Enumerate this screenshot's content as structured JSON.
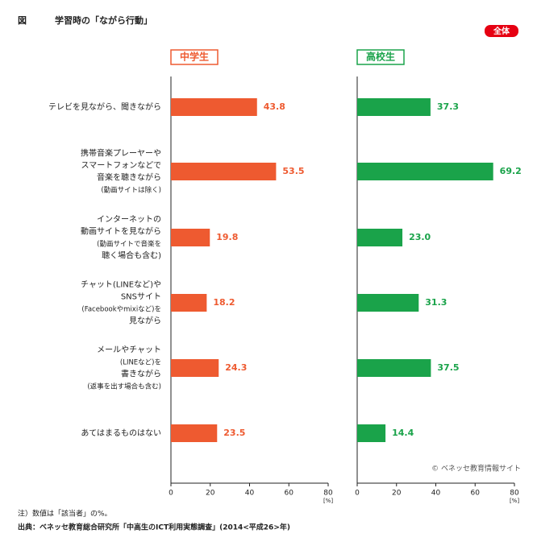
{
  "chart_data": {
    "type": "bar",
    "orientation": "horizontal",
    "label": "図",
    "title": "学習時の「ながら行動」",
    "badge": "全体",
    "categories": [
      "テレビを見ながら、聞きながら",
      "携帯音楽プレーヤーや\nスマートフォンなどで\n音楽を聴きながら\n(動画サイトは除く)",
      "インターネットの\n動画サイトを見ながら\n(動画サイトで音楽を\n聴く場合も含む)",
      "チャット(LINEなど)や\nSNSサイト\n(Facebookやmixiなど)を\n見ながら",
      "メールやチャット\n(LINEなど)を\n書きながら\n(返事を出す場合も含む)",
      "あてはまるものはない"
    ],
    "series": [
      {
        "name": "中学生",
        "color": "#ee5a30",
        "values": [
          43.8,
          53.5,
          19.8,
          18.2,
          24.3,
          23.5
        ]
      },
      {
        "name": "高校生",
        "color": "#1aa34a",
        "values": [
          37.3,
          69.2,
          23.0,
          31.3,
          37.5,
          14.4
        ],
        "value_labels": [
          "37.3",
          "69.2",
          "23.0",
          "31.3",
          "37.5",
          "14.4"
        ]
      }
    ],
    "xlim": [
      0,
      80
    ],
    "xticks": [
      0,
      20,
      40,
      60,
      80
    ],
    "xlabel": "[%]",
    "credit": "© ベネッセ教育情報サイト",
    "notes": [
      "注）数値は「該当者」の%。",
      "出典：ベネッセ教育総合研究所「中高生のICT利用実態調査」(2014<平成26>年)"
    ]
  }
}
